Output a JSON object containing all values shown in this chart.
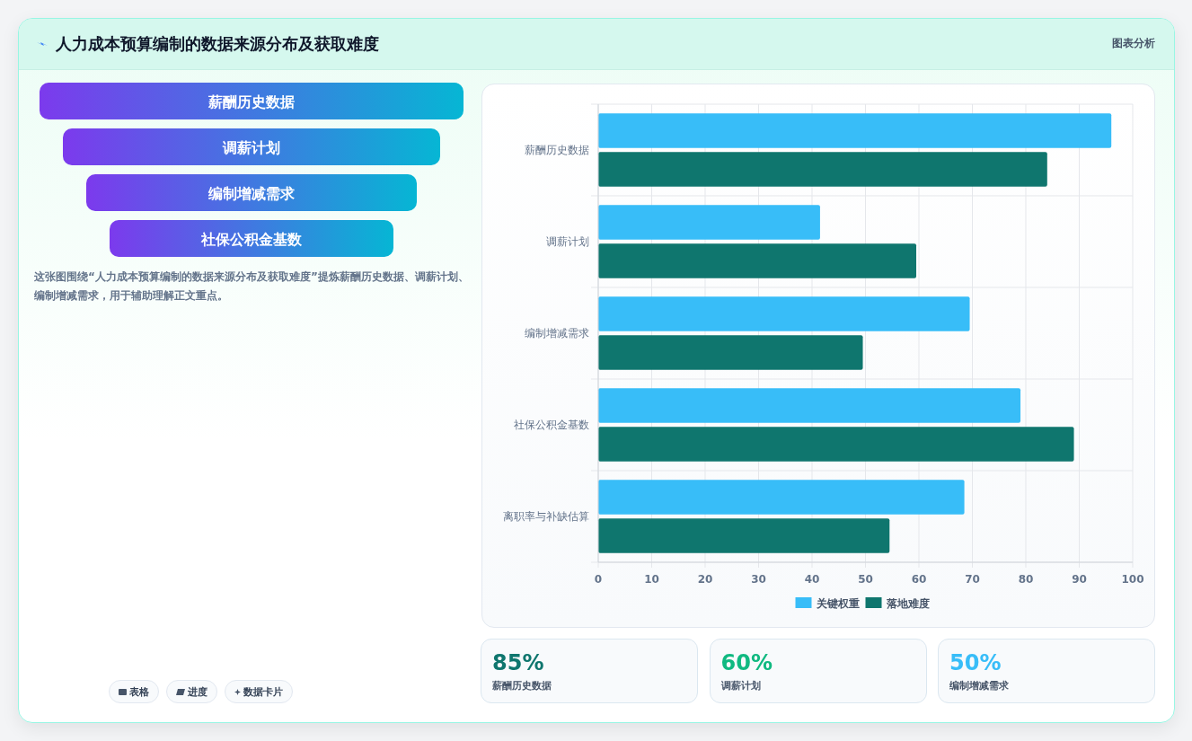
{
  "chart_data": [
    {
      "type": "other",
      "title": "人力成本预算编制的数据来源分布及获取难度",
      "categories": [
        "薪酬历史数据",
        "调薪计划",
        "编制增减需求",
        "社保公积金基数"
      ],
      "annotations": [
        "图表分析",
        "这张图围绕“人力成本预算编制的数据来源分布及获取难度”提炼薪酬历史数据、调薪计划、编制增减需求，用于辅助理解正文重点。",
        "表格",
        "进度",
        "数据卡片"
      ]
    },
    {
      "type": "bar",
      "orientation": "horizontal",
      "categories": [
        "薪酬历史数据",
        "调薪计划",
        "编制增减需求",
        "社保公积金基数",
        "离职率与补缺估算"
      ],
      "series": [
        {
          "name": "关键权重",
          "color": "#38bdf8",
          "values": [
            96,
            41.5,
            69.5,
            79,
            68.5
          ]
        },
        {
          "name": "落地难度",
          "color": "#0f766e",
          "values": [
            84,
            59.5,
            49.5,
            89,
            54.5
          ]
        }
      ],
      "xlim": [
        0,
        100
      ],
      "xticks": [
        0,
        10,
        20,
        30,
        40,
        50,
        60,
        70,
        80,
        90,
        100
      ],
      "grid": true,
      "legend": "bottom"
    },
    {
      "type": "other",
      "annotations": [
        "85%",
        "薪酬历史数据",
        "60%",
        "调薪计划",
        "50%",
        "编制增减需求"
      ]
    }
  ]
}
